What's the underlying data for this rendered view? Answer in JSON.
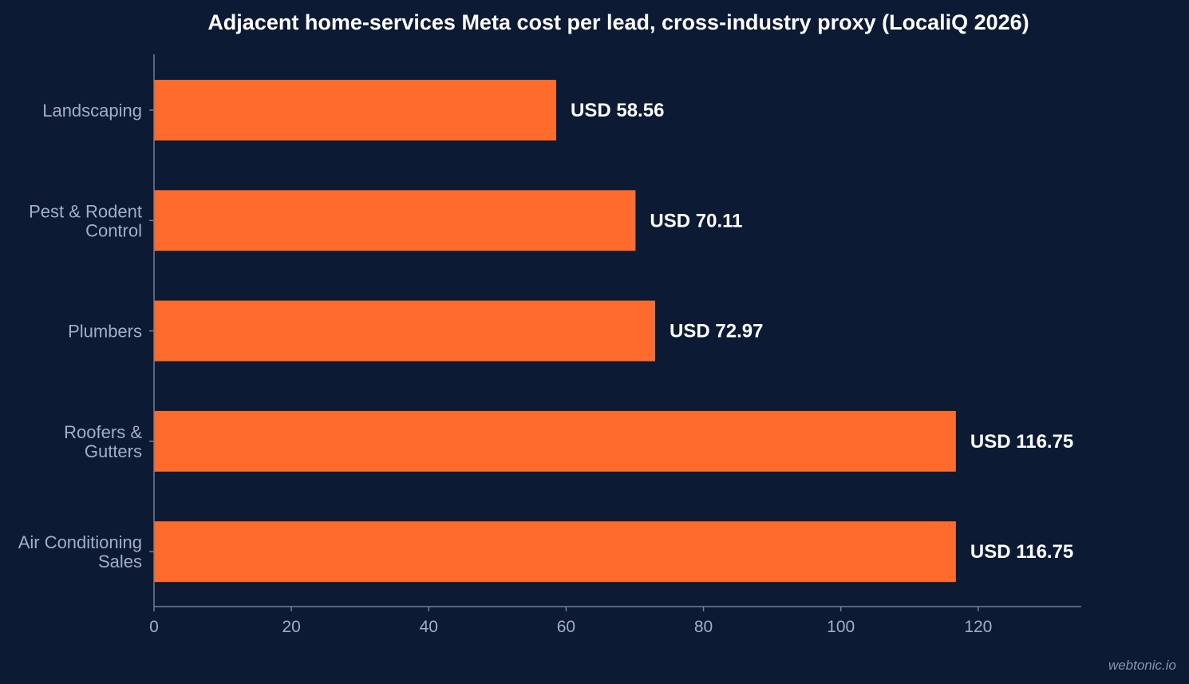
{
  "chart_data": {
    "type": "bar",
    "orientation": "horizontal",
    "title": "Adjacent home-services Meta cost per lead, cross-industry proxy (LocaliQ 2026)",
    "xlabel": "",
    "ylabel": "",
    "categories": [
      [
        "Landscaping"
      ],
      [
        "Pest & Rodent",
        "Control"
      ],
      [
        "Plumbers"
      ],
      [
        "Roofers &",
        "Gutters"
      ],
      [
        "Air Conditioning",
        "Sales"
      ]
    ],
    "values": [
      58.56,
      70.11,
      72.97,
      116.75,
      116.75
    ],
    "value_labels": [
      "USD 58.56",
      "USD 70.11",
      "USD 72.97",
      "USD 116.75",
      "USD 116.75"
    ],
    "xticks": [
      0,
      20,
      40,
      60,
      80,
      100,
      120
    ],
    "xlim": [
      0,
      135
    ],
    "grid": false,
    "colors": {
      "bar": "#ff6b2c",
      "background": "#0c1b33"
    }
  },
  "watermark": "webtonic.io"
}
